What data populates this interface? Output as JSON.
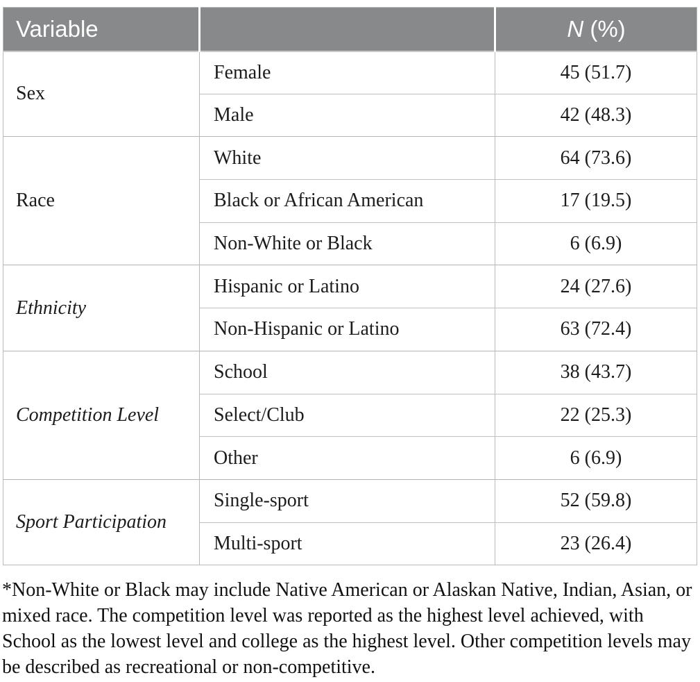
{
  "table": {
    "header": {
      "variable_label": "Variable",
      "middle_label": "",
      "n_label_italic": "N",
      "n_label_rest": " (%)"
    },
    "columns": [
      "Variable",
      "",
      "N (%)"
    ],
    "groups": [
      {
        "variable": "Sex",
        "italic": false,
        "rows": [
          {
            "category": "Female",
            "value": "45 (51.7)"
          },
          {
            "category": "Male",
            "value": "42 (48.3)"
          }
        ]
      },
      {
        "variable": "Race",
        "italic": false,
        "rows": [
          {
            "category": "White",
            "value": "64 (73.6)"
          },
          {
            "category": "Black or African American",
            "value": "17 (19.5)"
          },
          {
            "category": "Non-White or Black",
            "value": "6 (6.9)"
          }
        ]
      },
      {
        "variable": "Ethnicity",
        "italic": true,
        "rows": [
          {
            "category": "Hispanic or Latino",
            "value": "24 (27.6)"
          },
          {
            "category": "Non-Hispanic or Latino",
            "value": "63 (72.4)"
          }
        ]
      },
      {
        "variable": "Competition Level",
        "italic": true,
        "rows": [
          {
            "category": "School",
            "value": "38 (43.7)"
          },
          {
            "category": "Select/Club",
            "value": "22 (25.3)"
          },
          {
            "category": "Other",
            "value": "6 (6.9)"
          }
        ]
      },
      {
        "variable": "Sport Participation",
        "italic": true,
        "rows": [
          {
            "category": "Single-sport",
            "value": "52 (59.8)"
          },
          {
            "category": "Multi-sport",
            "value": "23 (26.4)"
          }
        ]
      }
    ]
  },
  "footnote": "*Non-White or Black may include Native American or Alaskan Native, Indian, Asian, or mixed race. The competition level was reported as the highest level achieved, with School as the lowest level and college as the highest level. Other competition levels may be described as recreational or non-competitive.",
  "colors": {
    "header_bg": "#88898b",
    "header_text": "#ffffff",
    "grid_line": "#b9bbba",
    "body_text": "#1c1c1c"
  }
}
